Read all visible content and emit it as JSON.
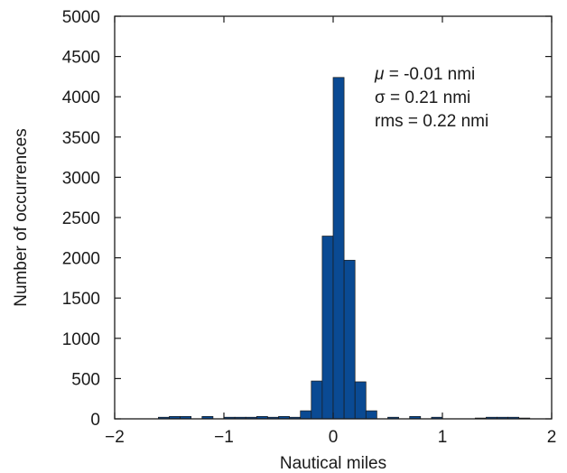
{
  "chart_data": {
    "type": "bar",
    "xlabel": "Nautical miles",
    "ylabel": "Number of occurrences",
    "xlim": [
      -2,
      2
    ],
    "ylim": [
      0,
      5000
    ],
    "xticks": [
      -2,
      -1,
      0,
      1,
      2
    ],
    "xtick_labels": [
      "−2",
      "−1",
      "0",
      "1",
      "2"
    ],
    "yticks": [
      0,
      500,
      1000,
      1500,
      2000,
      2500,
      3000,
      3500,
      4000,
      4500,
      5000
    ],
    "ytick_labels": [
      "0",
      "500",
      "1000",
      "1500",
      "2000",
      "2500",
      "3000",
      "3500",
      "4000",
      "4500",
      "5000"
    ],
    "grid": false,
    "bin_width": 0.1,
    "bins": [
      {
        "x": -2.0,
        "value": 0
      },
      {
        "x": -1.9,
        "value": 0
      },
      {
        "x": -1.8,
        "value": 0
      },
      {
        "x": -1.7,
        "value": 0
      },
      {
        "x": -1.6,
        "value": 20
      },
      {
        "x": -1.5,
        "value": 30
      },
      {
        "x": -1.4,
        "value": 30
      },
      {
        "x": -1.3,
        "value": 0
      },
      {
        "x": -1.2,
        "value": 30
      },
      {
        "x": -1.1,
        "value": 0
      },
      {
        "x": -1.0,
        "value": 20
      },
      {
        "x": -0.9,
        "value": 20
      },
      {
        "x": -0.8,
        "value": 20
      },
      {
        "x": -0.7,
        "value": 30
      },
      {
        "x": -0.6,
        "value": 20
      },
      {
        "x": -0.5,
        "value": 30
      },
      {
        "x": -0.4,
        "value": 20
      },
      {
        "x": -0.3,
        "value": 100
      },
      {
        "x": -0.2,
        "value": 470
      },
      {
        "x": -0.1,
        "value": 2270
      },
      {
        "x": 0.0,
        "value": 4240
      },
      {
        "x": 0.1,
        "value": 1970
      },
      {
        "x": 0.2,
        "value": 460
      },
      {
        "x": 0.3,
        "value": 100
      },
      {
        "x": 0.4,
        "value": 0
      },
      {
        "x": 0.5,
        "value": 20
      },
      {
        "x": 0.6,
        "value": 0
      },
      {
        "x": 0.7,
        "value": 30
      },
      {
        "x": 0.8,
        "value": 0
      },
      {
        "x": 0.9,
        "value": 20
      },
      {
        "x": 1.0,
        "value": 0
      },
      {
        "x": 1.1,
        "value": 0
      },
      {
        "x": 1.2,
        "value": 0
      },
      {
        "x": 1.3,
        "value": 10
      },
      {
        "x": 1.4,
        "value": 20
      },
      {
        "x": 1.5,
        "value": 20
      },
      {
        "x": 1.6,
        "value": 20
      },
      {
        "x": 1.7,
        "value": 10
      },
      {
        "x": 1.8,
        "value": 0
      },
      {
        "x": 1.9,
        "value": 0
      }
    ],
    "bar_color": "#0a4a93",
    "annotations": {
      "mu_symbol": "μ",
      "mu_text": " = -0.01 nmi",
      "sigma_text": "σ = 0.21 nmi",
      "rms_text": "rms = 0.22 nmi"
    }
  }
}
